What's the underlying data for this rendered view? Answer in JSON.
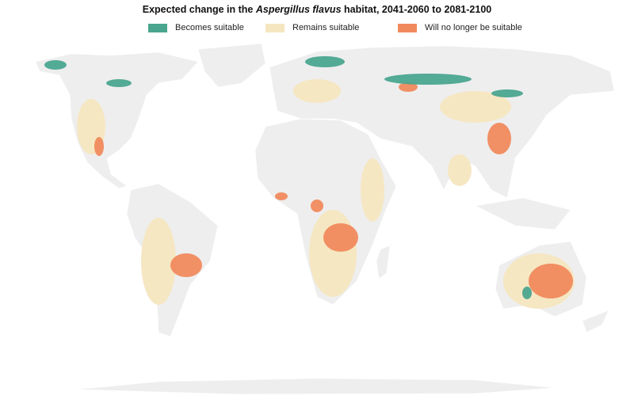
{
  "header": {
    "title": {
      "before": "Expected change in the ",
      "italic": "Aspergillus flavus",
      "after": " habitat, 2041-2060 to 2081-2100"
    }
  },
  "legend": {
    "items": [
      {
        "label": "Becomes suitable",
        "color": "#4aa58f"
      },
      {
        "label": "Remains suitable",
        "color": "#f5e6c0"
      },
      {
        "label": "Will no longer be suitable",
        "color": "#f08a5d"
      }
    ]
  }
}
